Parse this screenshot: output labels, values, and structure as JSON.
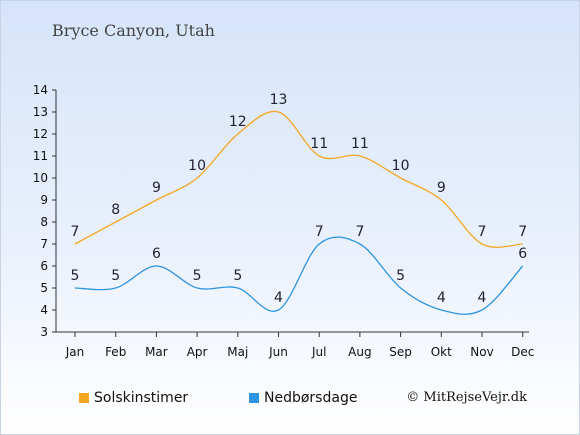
{
  "title": "Bryce Canyon, Utah",
  "credit": "© MitRejseVejr.dk",
  "chart_data": {
    "type": "line",
    "categories": [
      "Jan",
      "Feb",
      "Mar",
      "Apr",
      "Maj",
      "Jun",
      "Jul",
      "Aug",
      "Sep",
      "Okt",
      "Nov",
      "Dec"
    ],
    "ylim": [
      3,
      14
    ],
    "yticks": [
      3,
      4,
      5,
      6,
      7,
      8,
      9,
      10,
      11,
      12,
      13,
      14
    ],
    "grid": false,
    "legend_position": "bottom",
    "series": [
      {
        "name": "Solskinstimer",
        "color": "#f5a623",
        "values": [
          7,
          8,
          9,
          10,
          12,
          13,
          11,
          11,
          10,
          9,
          7,
          7
        ]
      },
      {
        "name": "Nedbørsdage",
        "color": "#2d95e0",
        "values": [
          5,
          5,
          6,
          5,
          5,
          4,
          7,
          7,
          5,
          4,
          4,
          6
        ]
      }
    ]
  }
}
